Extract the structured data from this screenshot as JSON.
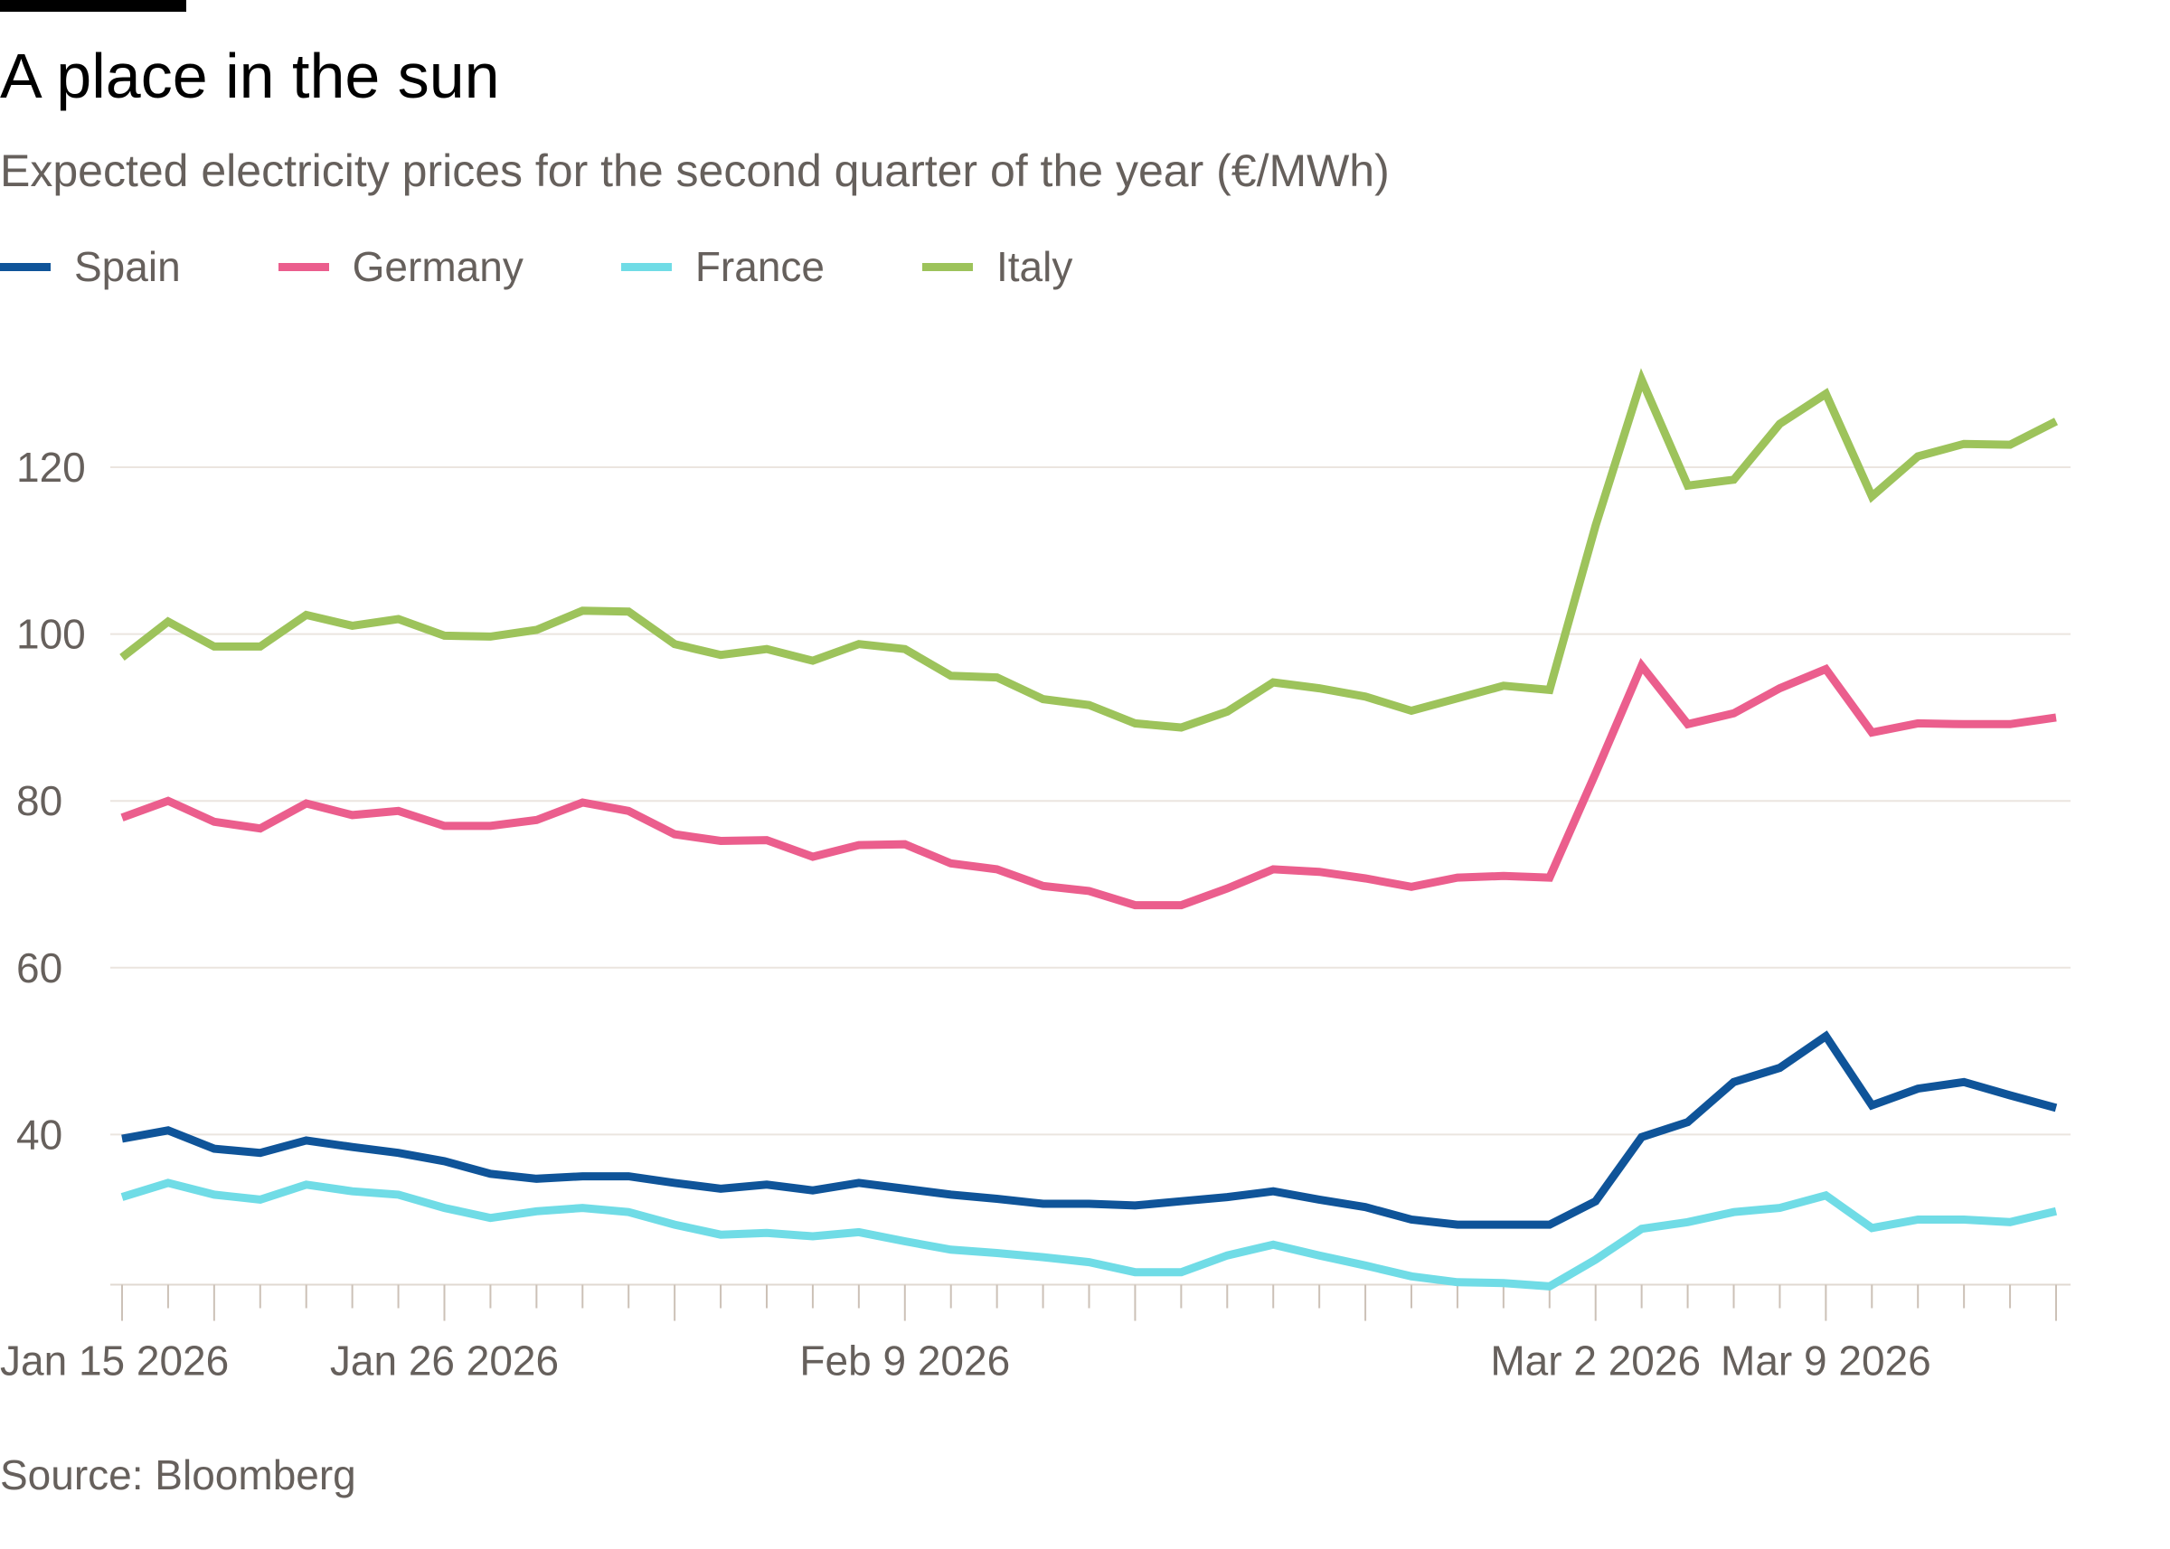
{
  "title": "A place in the sun",
  "subtitle": "Expected electricity prices for the second quarter of the year (€/MWh)",
  "source": "Source: Bloomberg",
  "chart_data": {
    "type": "line",
    "title": "A place in the sun",
    "subtitle": "Expected electricity prices for the second quarter of the year (€/MWh)",
    "xlabel": "",
    "ylabel": "€/MWh",
    "ylim": [
      22,
      131
    ],
    "grid": true,
    "legend_placement": "top-left",
    "yticks": [
      40,
      60,
      80,
      100,
      120
    ],
    "xtick_labels": [
      {
        "index": 0,
        "label": "Jan 15 2026"
      },
      {
        "index": 7,
        "label": "Jan 26 2026"
      },
      {
        "index": 17,
        "label": "Feb 9 2026"
      },
      {
        "index": 32,
        "label": "Mar 2 2026"
      },
      {
        "index": 37,
        "label": "Mar 9 2026"
      }
    ],
    "x": [
      "2026-01-15",
      "2026-01-16",
      "2026-01-19",
      "2026-01-20",
      "2026-01-21",
      "2026-01-22",
      "2026-01-23",
      "2026-01-26",
      "2026-01-27",
      "2026-01-28",
      "2026-01-29",
      "2026-01-30",
      "2026-02-02",
      "2026-02-03",
      "2026-02-04",
      "2026-02-05",
      "2026-02-06",
      "2026-02-09",
      "2026-02-10",
      "2026-02-11",
      "2026-02-12",
      "2026-02-13",
      "2026-02-16",
      "2026-02-17",
      "2026-02-18",
      "2026-02-19",
      "2026-02-20",
      "2026-02-23",
      "2026-02-24",
      "2026-02-25",
      "2026-02-26",
      "2026-02-27",
      "2026-03-02",
      "2026-03-03",
      "2026-03-04",
      "2026-03-05",
      "2026-03-06",
      "2026-03-09",
      "2026-03-10",
      "2026-03-11",
      "2026-03-12",
      "2026-03-13",
      "2026-03-16"
    ],
    "series": [
      {
        "name": "Spain",
        "color": "#0f5499",
        "values": [
          39.5,
          40.5,
          38.3,
          37.8,
          39.3,
          38.5,
          37.8,
          36.8,
          35.3,
          34.7,
          35,
          35,
          34.2,
          33.5,
          34,
          33.3,
          34.2,
          33.5,
          32.8,
          32.3,
          31.7,
          31.7,
          31.5,
          32,
          32.5,
          33.2,
          32.2,
          31.3,
          29.8,
          29.2,
          29.2,
          29.2,
          32,
          39.7,
          41.5,
          46.3,
          48,
          51.8,
          43.5,
          45.5,
          46.3,
          44.7,
          43.2
        ]
      },
      {
        "name": "Germany",
        "color": "#eb5e8d",
        "values": [
          78,
          80,
          77.5,
          76.7,
          79.7,
          78.3,
          78.8,
          77,
          77,
          77.7,
          79.8,
          78.8,
          76,
          75.2,
          75.3,
          73.3,
          74.7,
          74.8,
          72.5,
          71.8,
          69.8,
          69.2,
          67.5,
          67.5,
          69.5,
          71.8,
          71.5,
          70.7,
          69.7,
          70.8,
          71,
          70.8,
          83.3,
          96.2,
          89.2,
          90.5,
          93.5,
          95.8,
          88.2,
          89.3,
          89.2,
          89.2,
          90
        ]
      },
      {
        "name": "France",
        "color": "#70dce6",
        "values": [
          32.5,
          34.2,
          32.8,
          32.2,
          34,
          33.2,
          32.8,
          31.2,
          30,
          30.8,
          31.2,
          30.7,
          29.2,
          28,
          28.2,
          27.8,
          28.3,
          27.2,
          26.2,
          25.8,
          25.3,
          24.7,
          23.5,
          23.5,
          25.5,
          26.8,
          25.5,
          24.3,
          23,
          22.3,
          22.2,
          21.8,
          25,
          28.7,
          29.5,
          30.7,
          31.2,
          32.7,
          28.8,
          29.8,
          29.8,
          29.5,
          30.8
        ]
      },
      {
        "name": "Italy",
        "color": "#9dc35b",
        "values": [
          97.2,
          101.5,
          98.5,
          98.5,
          102.3,
          101,
          101.8,
          99.8,
          99.7,
          100.5,
          102.8,
          102.7,
          98.8,
          97.5,
          98.2,
          96.8,
          98.8,
          98.2,
          95,
          94.8,
          92.2,
          91.5,
          89.3,
          88.8,
          90.7,
          94.2,
          93.5,
          92.5,
          90.8,
          92.3,
          93.8,
          93.3,
          113,
          130.5,
          117.8,
          118.5,
          125.2,
          128.8,
          116.5,
          121.3,
          122.8,
          122.7,
          125.5
        ]
      }
    ]
  }
}
